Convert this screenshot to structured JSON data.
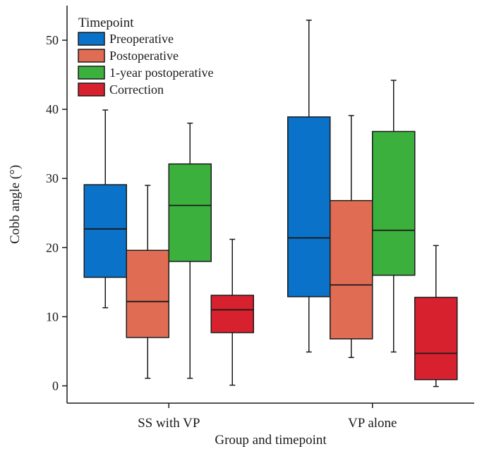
{
  "chart_data": {
    "type": "boxplot",
    "title": "",
    "xlabel": "Group and timepoint",
    "ylabel": "Cobb angle (°)",
    "ylim": [
      -2.5,
      55
    ],
    "yticks": [
      0,
      10,
      20,
      30,
      40,
      50
    ],
    "categories": [
      "SS with VP",
      "VP alone"
    ],
    "legend": {
      "title": "Timepoint",
      "position": "top-left"
    },
    "series": [
      {
        "name": "Preoperative",
        "color": "#0a72c8",
        "boxes": [
          {
            "min": 11.3,
            "q1": 15.7,
            "median": 22.7,
            "q3": 29.1,
            "max": 39.9
          },
          {
            "min": 4.9,
            "q1": 12.9,
            "median": 21.4,
            "q3": 38.9,
            "max": 52.9
          }
        ]
      },
      {
        "name": "Postoperative",
        "color": "#e06d53",
        "boxes": [
          {
            "min": 1.1,
            "q1": 7.0,
            "median": 12.2,
            "q3": 19.6,
            "max": 29.0
          },
          {
            "min": 4.1,
            "q1": 6.8,
            "median": 14.6,
            "q3": 26.8,
            "max": 39.1
          }
        ]
      },
      {
        "name": "1-year postoperative",
        "color": "#3cb03c",
        "boxes": [
          {
            "min": 1.1,
            "q1": 18.0,
            "median": 26.1,
            "q3": 32.1,
            "max": 38.0
          },
          {
            "min": 4.9,
            "q1": 16.0,
            "median": 22.5,
            "q3": 36.8,
            "max": 44.2
          }
        ]
      },
      {
        "name": "Correction",
        "color": "#d8212e",
        "boxes": [
          {
            "min": 0.1,
            "q1": 7.7,
            "median": 11.0,
            "q3": 13.1,
            "max": 21.2
          },
          {
            "min": -0.1,
            "q1": 0.9,
            "median": 4.7,
            "q3": 12.8,
            "max": 20.3
          }
        ]
      }
    ]
  }
}
